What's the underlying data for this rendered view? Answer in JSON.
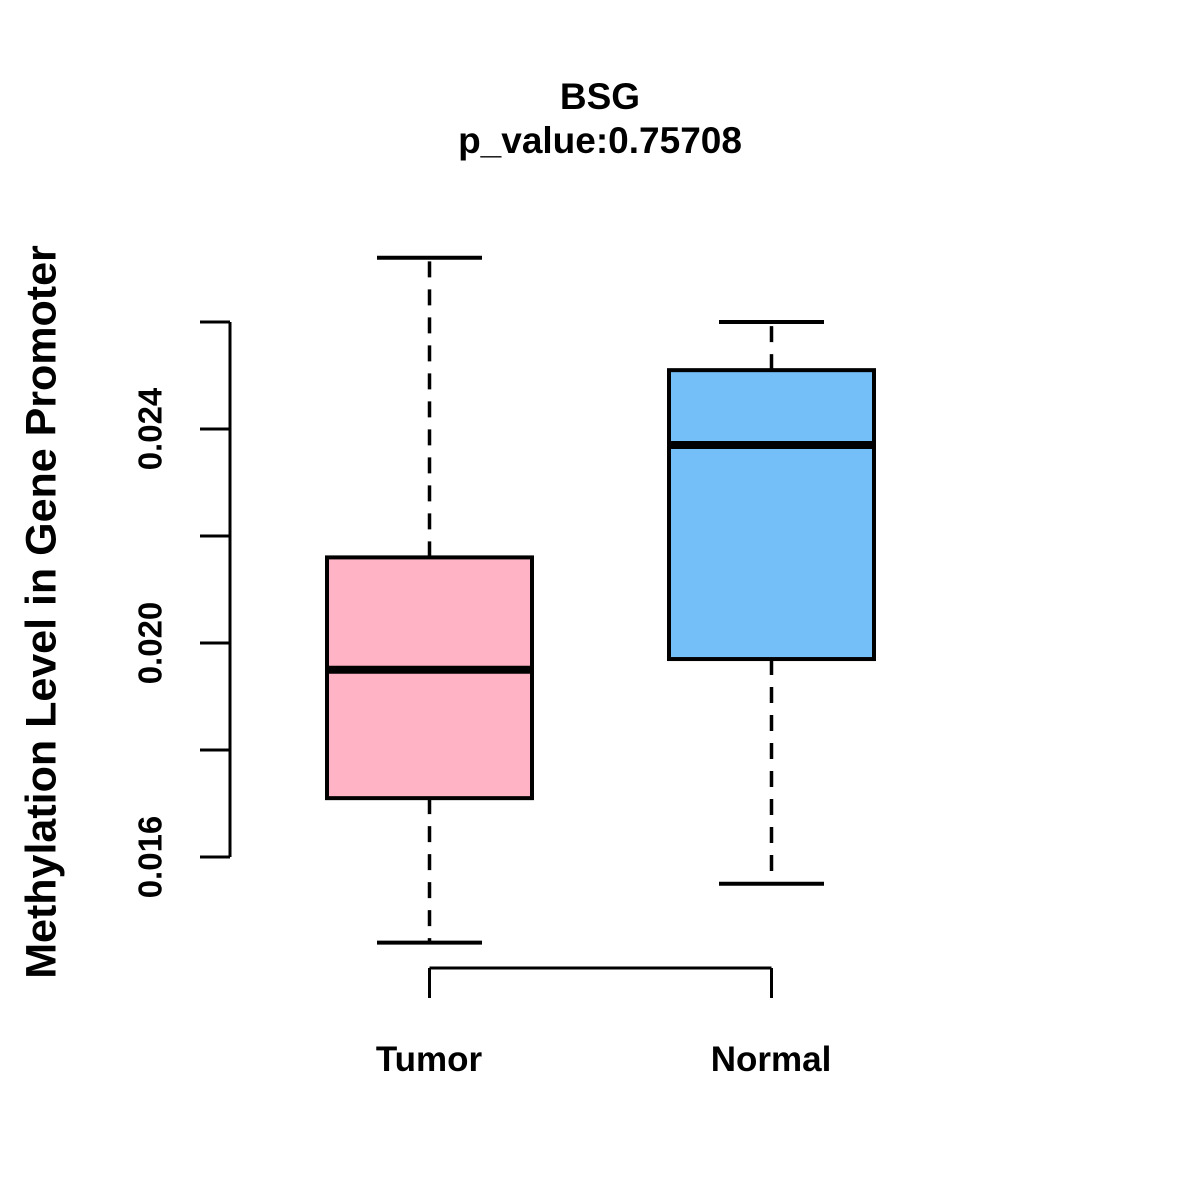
{
  "chart_data": {
    "type": "boxplot",
    "title": "BSG",
    "subtitle": "p_value:0.75708",
    "ylabel": "Methylation Level in Gene Promoter",
    "categories": [
      "Tumor",
      "Normal"
    ],
    "series": [
      {
        "name": "Tumor",
        "color": "#FFB3C4",
        "min": 0.0144,
        "q1": 0.0171,
        "median": 0.0195,
        "q3": 0.0216,
        "max": 0.0272
      },
      {
        "name": "Normal",
        "color": "#74BFF7",
        "min": 0.0155,
        "q1": 0.0197,
        "median": 0.0237,
        "q3": 0.0251,
        "max": 0.026
      }
    ],
    "y_axis": {
      "range": [
        0.016,
        0.026
      ],
      "ticks": [
        0.016,
        0.018,
        0.02,
        0.022,
        0.024,
        0.026
      ],
      "labeled_ticks": [
        {
          "value": 0.016,
          "label": "0.016"
        },
        {
          "value": 0.02,
          "label": "0.020"
        },
        {
          "value": 0.024,
          "label": "0.024"
        }
      ]
    },
    "styles": {
      "stroke_color": "#000000",
      "background": "#FFFFFF"
    },
    "legend": null,
    "grid": false
  }
}
